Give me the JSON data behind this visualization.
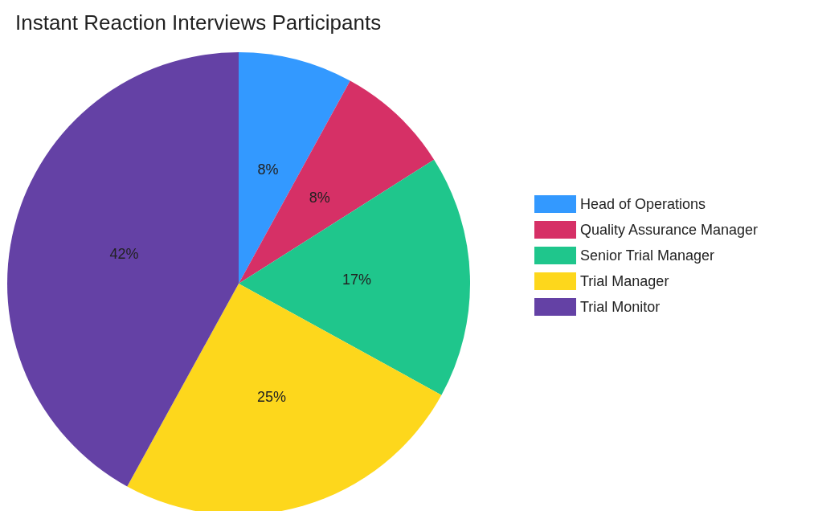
{
  "chart_data": {
    "type": "pie",
    "title": "Instant Reaction Interviews Participants",
    "categories": [
      "Head of Operations",
      "Quality Assurance Manager",
      "Senior Trial Manager",
      "Trial Manager",
      "Trial Monitor"
    ],
    "values": [
      8,
      8,
      17,
      25,
      42
    ],
    "colors": [
      "#3399ff",
      "#d63066",
      "#1fc68c",
      "#fdd71c",
      "#6441a5"
    ],
    "value_labels": [
      "8%",
      "8%",
      "17%",
      "25%",
      "42%"
    ],
    "legend": "right"
  }
}
